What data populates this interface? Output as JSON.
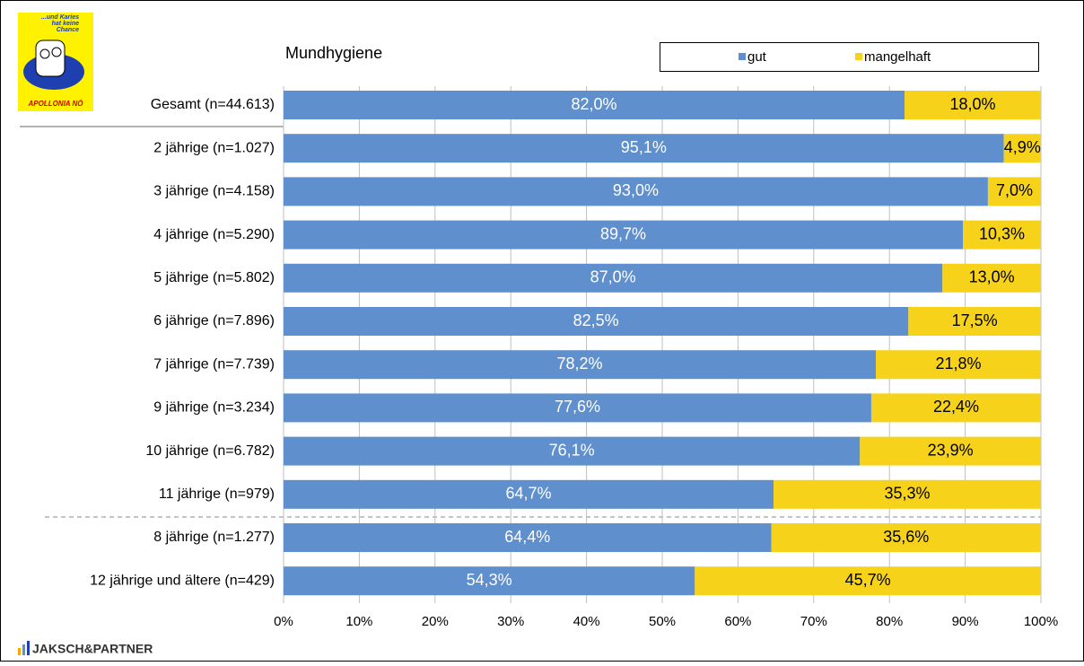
{
  "logo": {
    "lines": [
      "...und Karies",
      "hat keine",
      "Chance"
    ],
    "name": "APOLLONIA NÖ"
  },
  "footer": "JAKSCH&PARTNER",
  "chart_data": {
    "type": "stacked-barh",
    "title": "Mundhygiene",
    "categories": [
      "Gesamt (n=44.613)",
      "2 jährige (n=1.027)",
      "3 jährige (n=4.158)",
      "4 jährige (n=5.290)",
      "5 jährige (n=5.802)",
      "6 jährige (n=7.896)",
      "7 jährige (n=7.739)",
      "9 jährige (n=3.234)",
      "10 jährige (n=6.782)",
      "11 jährige (n=979)",
      "8 jährige (n=1.277)",
      "12 jährige und ältere (n=429)"
    ],
    "series": [
      {
        "name": "gut",
        "color": "#5f8fcd",
        "label_color": "#ffffff",
        "values": [
          82.0,
          95.1,
          93.0,
          89.7,
          87.0,
          82.5,
          78.2,
          77.6,
          76.1,
          64.7,
          64.4,
          54.3
        ],
        "value_labels": [
          "82,0%",
          "95,1%",
          "93,0%",
          "89,7%",
          "87,0%",
          "82,5%",
          "78,2%",
          "77,6%",
          "76,1%",
          "64,7%",
          "64,4%",
          "54,3%"
        ]
      },
      {
        "name": "mangelhaft",
        "color": "#f6d31a",
        "label_color": "#000000",
        "values": [
          18.0,
          4.9,
          7.0,
          10.3,
          13.0,
          17.5,
          21.8,
          22.4,
          23.9,
          35.3,
          35.6,
          45.7
        ],
        "value_labels": [
          "18,0%",
          "4,9%",
          "7,0%",
          "10,3%",
          "13,0%",
          "17,5%",
          "21,8%",
          "22,4%",
          "23,9%",
          "35,3%",
          "35,6%",
          "45,7%"
        ]
      }
    ],
    "xlim": [
      0,
      100
    ],
    "xticks": [
      {
        "value": 0,
        "label": "0%"
      },
      {
        "value": 10,
        "label": "10%"
      },
      {
        "value": 20,
        "label": "20%"
      },
      {
        "value": 30,
        "label": "30%"
      },
      {
        "value": 40,
        "label": "40%"
      },
      {
        "value": 50,
        "label": "50%"
      },
      {
        "value": 60,
        "label": "60%"
      },
      {
        "value": 70,
        "label": "70%"
      },
      {
        "value": 80,
        "label": "80%"
      },
      {
        "value": 90,
        "label": "90%"
      },
      {
        "value": 100,
        "label": "100%"
      }
    ],
    "grid": true,
    "legend": "top-right"
  }
}
